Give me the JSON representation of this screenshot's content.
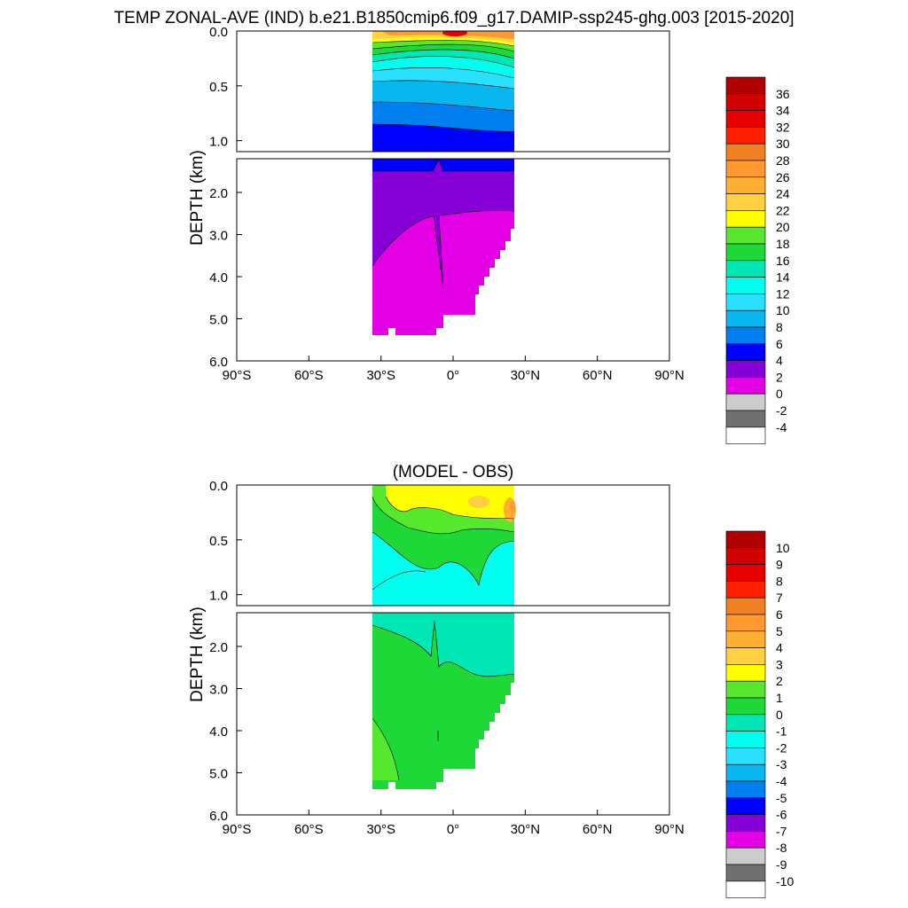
{
  "title": "TEMP ZONAL-AVE (IND) b.e21.B1850cmip6.f09_g17.DAMIP-ssp245-ghg.003 [2015-2020]",
  "chart_data": [
    {
      "type": "heatmap",
      "title": "",
      "ylabel": "DEPTH (km)",
      "x_ticks": [
        "90°S",
        "60°S",
        "30°S",
        "0°",
        "30°N",
        "60°N",
        "90°N"
      ],
      "x_values": [
        -90,
        -60,
        -30,
        0,
        30,
        60,
        90
      ],
      "xlim": [
        -90,
        90
      ],
      "upper_ylim": [
        0,
        1.1
      ],
      "upper_ticks": [
        "0.0",
        "0.5",
        "1.0"
      ],
      "upper_tick_values": [
        0,
        0.5,
        1.0
      ],
      "lower_ylim": [
        1.2,
        6.0
      ],
      "lower_ticks": [
        "2.0",
        "3.0",
        "4.0",
        "5.0",
        "6.0"
      ],
      "lower_tick_values": [
        2,
        3,
        4,
        5,
        6
      ],
      "data_lon_range": [
        -34,
        25
      ],
      "colorbar_labels": [
        "36",
        "34",
        "32",
        "30",
        "28",
        "26",
        "24",
        "22",
        "20",
        "18",
        "16",
        "14",
        "12",
        "10",
        "8",
        "6",
        "4",
        "2",
        "0",
        "-2",
        "-4"
      ],
      "colorbar_colors": [
        "#b00000",
        "#d20000",
        "#e60000",
        "#ff2000",
        "#f08020",
        "#ff9a30",
        "#ffb030",
        "#ffd040",
        "#ffff00",
        "#55e82c",
        "#1ed838",
        "#00e6b4",
        "#00ffee",
        "#2ae0ff",
        "#0ab6f0",
        "#0080f0",
        "#0000ff",
        "#8800d8",
        "#e400e4",
        "#cccccc",
        "#707070",
        "#ffffff"
      ],
      "upper_bands": [
        {
          "color": "#ffaa30",
          "v": 28
        },
        {
          "color": "#ffd040",
          "v": 24
        },
        {
          "color": "#ffff00",
          "v": 20
        },
        {
          "color": "#55e82c",
          "v": 18
        },
        {
          "color": "#00e6b4",
          "v": 14
        },
        {
          "color": "#00ffee",
          "v": 12
        },
        {
          "color": "#2ae0ff",
          "v": 10
        },
        {
          "color": "#0ab6f0",
          "v": 8
        },
        {
          "color": "#0080f0",
          "v": 6
        },
        {
          "color": "#0000ff",
          "v": 4
        }
      ],
      "lower_regions": [
        "4-6 C band",
        "2-4 C band",
        "0-2 C deep water"
      ]
    },
    {
      "type": "heatmap",
      "title": "(MODEL - OBS)",
      "ylabel": "DEPTH (km)",
      "x_ticks": [
        "90°S",
        "60°S",
        "30°S",
        "0°",
        "30°N",
        "60°N",
        "90°N"
      ],
      "x_values": [
        -90,
        -60,
        -30,
        0,
        30,
        60,
        90
      ],
      "xlim": [
        -90,
        90
      ],
      "upper_ylim": [
        0,
        1.1
      ],
      "upper_ticks": [
        "0.0",
        "0.5",
        "1.0"
      ],
      "upper_tick_values": [
        0,
        0.5,
        1.0
      ],
      "lower_ylim": [
        1.2,
        6.0
      ],
      "lower_ticks": [
        "2.0",
        "3.0",
        "4.0",
        "5.0",
        "6.0"
      ],
      "lower_tick_values": [
        2,
        3,
        4,
        5,
        6
      ],
      "data_lon_range": [
        -34,
        25
      ],
      "colorbar_labels": [
        "10",
        "9",
        "8",
        "7",
        "6",
        "5",
        "4",
        "3",
        "2",
        "1",
        "0",
        "-1",
        "-2",
        "-3",
        "-4",
        "-5",
        "-6",
        "-7",
        "-8",
        "-9",
        "-10"
      ],
      "colorbar_colors": [
        "#b00000",
        "#d20000",
        "#e60000",
        "#ff2000",
        "#f08020",
        "#ff9a30",
        "#ffb030",
        "#ffd040",
        "#ffff00",
        "#55e82c",
        "#1ed838",
        "#00e6b4",
        "#00ffee",
        "#2ae0ff",
        "#0ab6f0",
        "#0080f0",
        "#0000ff",
        "#8800d8",
        "#e400e4",
        "#cccccc",
        "#707070",
        "#ffffff"
      ]
    }
  ]
}
